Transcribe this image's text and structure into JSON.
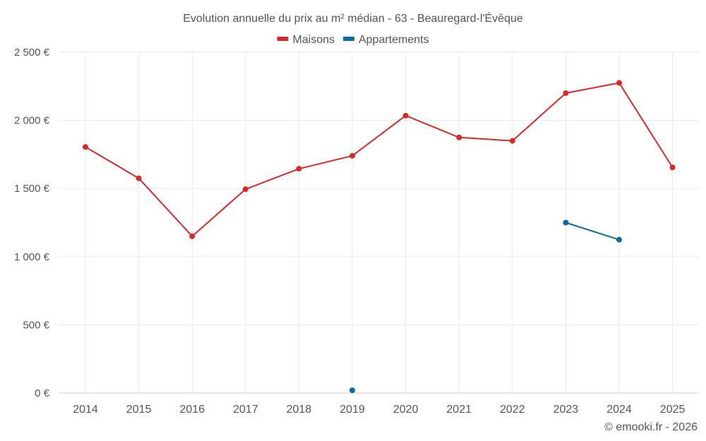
{
  "chart_data": {
    "type": "line",
    "title": "Evolution annuelle du prix au m² médian - 63 - Beauregard-l'Évêque",
    "categories": [
      "2014",
      "2015",
      "2016",
      "2017",
      "2018",
      "2019",
      "2020",
      "2021",
      "2022",
      "2023",
      "2024",
      "2025"
    ],
    "ylim": [
      0,
      2500
    ],
    "yticks": [
      0,
      500,
      1000,
      1500,
      2000,
      2500
    ],
    "ytick_labels": [
      "0 €",
      "500 €",
      "1 000 €",
      "1 500 €",
      "2 000 €",
      "2 500 €"
    ],
    "grid": true,
    "legend_position": "top-center",
    "series": [
      {
        "name": "Maisons",
        "color": "#d42a2a",
        "values": [
          1805,
          1575,
          1150,
          1495,
          1645,
          1740,
          2035,
          1875,
          1850,
          2200,
          2275,
          1655
        ]
      },
      {
        "name": "Appartements",
        "color": "#0a6aa1",
        "values": [
          null,
          null,
          null,
          null,
          null,
          20,
          null,
          null,
          null,
          1250,
          1125,
          null
        ]
      }
    ],
    "credit": "© emooki.fr - 2026"
  }
}
